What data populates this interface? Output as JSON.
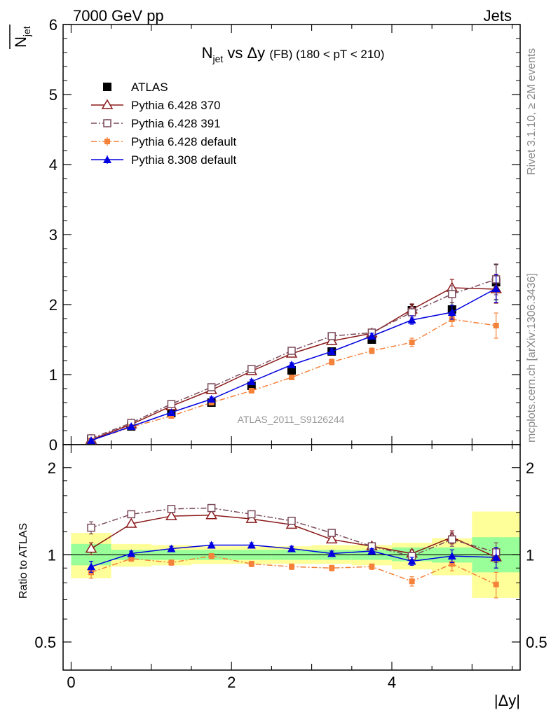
{
  "header": {
    "energy_label": "7000 GeV pp",
    "category_label": "Jets",
    "side_label_upper": "Rivet 3.1.10, ≥ 2M events",
    "side_label_lower": "mcplots.cern.ch [arXiv:1306.3436]",
    "watermark": "ATLAS_2011_S9126244"
  },
  "chart_data": [
    {
      "type": "line",
      "title": {
        "main": "N",
        "sub": "jet",
        "mid": " vs Δy ",
        "fb": "(FB)",
        "range": " (180 < pT < 210)"
      },
      "ylabel": {
        "main": "N",
        "sub": "jet"
      },
      "xlabel": "|Δy|",
      "xlim": [
        -0.1,
        5.6
      ],
      "ylim": [
        0,
        6
      ],
      "xticks": [
        0,
        2,
        4
      ],
      "yticks": [
        0,
        1,
        2,
        3,
        4,
        5,
        6
      ],
      "x": [
        0.25,
        0.75,
        1.25,
        1.75,
        2.25,
        2.75,
        3.25,
        3.75,
        4.25,
        4.75,
        5.3
      ],
      "series": [
        {
          "name": "ATLAS",
          "color": "#000000",
          "marker": "filled-square",
          "line": "none",
          "values": [
            0.07,
            0.26,
            0.45,
            0.6,
            0.84,
            1.06,
            1.33,
            1.5,
            1.92,
            1.93,
            2.32
          ],
          "err": [
            0.03,
            0.03,
            0.03,
            0.03,
            0.03,
            0.04,
            0.04,
            0.05,
            0.08,
            0.1,
            0.25
          ]
        },
        {
          "name": "Pythia 6.428 370",
          "color": "#8b1a1a",
          "marker": "open-triangle",
          "line": "solid",
          "values": [
            0.07,
            0.29,
            0.55,
            0.78,
            1.05,
            1.3,
            1.48,
            1.59,
            1.93,
            2.24,
            2.22
          ],
          "err": [
            0.02,
            0.02,
            0.02,
            0.03,
            0.03,
            0.04,
            0.05,
            0.05,
            0.08,
            0.12,
            0.2
          ]
        },
        {
          "name": "Pythia 6.428 391",
          "color": "#7a4a5a",
          "marker": "open-square",
          "line": "dashdot",
          "values": [
            0.09,
            0.31,
            0.58,
            0.82,
            1.08,
            1.34,
            1.55,
            1.6,
            1.89,
            2.15,
            2.36
          ],
          "err": [
            0.02,
            0.02,
            0.02,
            0.03,
            0.03,
            0.04,
            0.05,
            0.05,
            0.08,
            0.12,
            0.22
          ]
        },
        {
          "name": "Pythia 6.428 default",
          "color": "#f4823a",
          "marker": "filled-square-small",
          "line": "dashdot",
          "values": [
            0.06,
            0.25,
            0.41,
            0.6,
            0.77,
            0.96,
            1.18,
            1.34,
            1.46,
            1.79,
            1.7
          ],
          "err": [
            0.02,
            0.02,
            0.02,
            0.03,
            0.03,
            0.03,
            0.04,
            0.04,
            0.06,
            0.1,
            0.18
          ]
        },
        {
          "name": "Pythia 8.308 default",
          "color": "#0000e0",
          "marker": "filled-triangle",
          "line": "solid",
          "values": [
            0.06,
            0.26,
            0.46,
            0.65,
            0.9,
            1.14,
            1.33,
            1.55,
            1.78,
            1.89,
            2.23
          ],
          "err": [
            0.02,
            0.02,
            0.02,
            0.03,
            0.03,
            0.03,
            0.04,
            0.04,
            0.06,
            0.1,
            0.2
          ]
        }
      ]
    },
    {
      "type": "line",
      "ylabel": "Ratio to ATLAS",
      "xlabel": "|Δy|",
      "xlim": [
        -0.1,
        5.6
      ],
      "ylim": [
        0.4,
        2.4
      ],
      "yticks": [
        0.5,
        1,
        2
      ],
      "reference_value": 1,
      "bins": [
        [
          0,
          0.5
        ],
        [
          0.5,
          1.0
        ],
        [
          1.0,
          1.5
        ],
        [
          1.5,
          2.0
        ],
        [
          2.0,
          2.5
        ],
        [
          2.5,
          3.0
        ],
        [
          3.0,
          3.5
        ],
        [
          3.5,
          4.0
        ],
        [
          4.0,
          4.5
        ],
        [
          4.5,
          5.0
        ],
        [
          5.0,
          5.6
        ]
      ],
      "band_green": [
        [
          0.92,
          1.09
        ],
        [
          0.96,
          1.04
        ],
        [
          0.96,
          1.04
        ],
        [
          0.96,
          1.04
        ],
        [
          0.96,
          1.04
        ],
        [
          0.96,
          1.04
        ],
        [
          0.96,
          1.04
        ],
        [
          0.96,
          1.04
        ],
        [
          0.95,
          1.06
        ],
        [
          0.94,
          1.06
        ],
        [
          0.87,
          1.15
        ]
      ],
      "band_yellow": [
        [
          0.83,
          1.19
        ],
        [
          0.91,
          1.09
        ],
        [
          0.92,
          1.08
        ],
        [
          0.93,
          1.07
        ],
        [
          0.93,
          1.07
        ],
        [
          0.93,
          1.07
        ],
        [
          0.93,
          1.08
        ],
        [
          0.92,
          1.08
        ],
        [
          0.89,
          1.1
        ],
        [
          0.85,
          1.14
        ],
        [
          0.71,
          1.41
        ]
      ],
      "x": [
        0.25,
        0.75,
        1.25,
        1.75,
        2.25,
        2.75,
        3.25,
        3.75,
        4.25,
        4.75,
        5.3
      ],
      "series": [
        {
          "name": "Pythia 6.428 370",
          "color": "#8b1a1a",
          "marker": "open-triangle",
          "line": "solid",
          "values": [
            1.05,
            1.28,
            1.36,
            1.37,
            1.33,
            1.27,
            1.13,
            1.07,
            1.01,
            1.15,
            0.98
          ],
          "err": [
            0.05,
            0.02,
            0.02,
            0.02,
            0.02,
            0.02,
            0.02,
            0.02,
            0.03,
            0.06,
            0.08
          ]
        },
        {
          "name": "Pythia 6.428 391",
          "color": "#7a4a5a",
          "marker": "open-square",
          "line": "dashdot",
          "values": [
            1.24,
            1.38,
            1.44,
            1.45,
            1.38,
            1.31,
            1.19,
            1.07,
            0.99,
            1.13,
            1.02
          ],
          "err": [
            0.06,
            0.02,
            0.02,
            0.02,
            0.02,
            0.02,
            0.02,
            0.02,
            0.03,
            0.06,
            0.08
          ]
        },
        {
          "name": "Pythia 6.428 default",
          "color": "#f4823a",
          "marker": "filled-square-small",
          "line": "dashdot",
          "values": [
            0.87,
            0.97,
            0.94,
            0.99,
            0.93,
            0.91,
            0.9,
            0.91,
            0.81,
            0.93,
            0.79
          ],
          "err": [
            0.04,
            0.02,
            0.02,
            0.02,
            0.02,
            0.02,
            0.02,
            0.02,
            0.03,
            0.05,
            0.08
          ]
        },
        {
          "name": "Pythia 8.308 default",
          "color": "#0000e0",
          "marker": "filled-triangle",
          "line": "solid",
          "values": [
            0.91,
            1.01,
            1.05,
            1.08,
            1.08,
            1.05,
            1.01,
            1.03,
            0.95,
            0.99,
            0.98
          ],
          "err": [
            0.04,
            0.02,
            0.02,
            0.02,
            0.02,
            0.02,
            0.02,
            0.02,
            0.03,
            0.05,
            0.08
          ]
        }
      ]
    }
  ]
}
